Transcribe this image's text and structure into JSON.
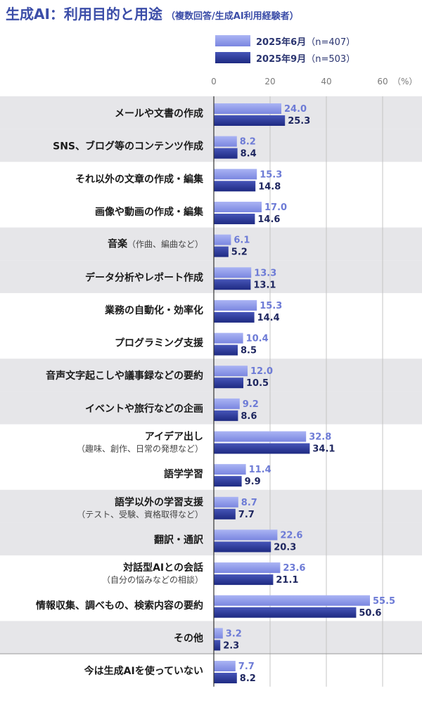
{
  "title": "生成AI：利用目的と用途",
  "subtitle": "（複数回答/生成AI利用経験者）",
  "colors": {
    "jun": "#8f9ae8",
    "sep": "#2c3a9a",
    "title": "#3b4da8",
    "label_jun": "#6d7bd6",
    "label_sep": "#1f2760",
    "band": "#e6e6e9",
    "grid": "#c4c4c4"
  },
  "chart_data": {
    "type": "bar",
    "orientation": "horizontal",
    "unit_label": "（%）",
    "xlim": [
      0,
      60
    ],
    "xticks": [
      0,
      20,
      40,
      60
    ],
    "series": [
      {
        "name": "2025年6月",
        "count": "（n=407）",
        "values": [
          24.0,
          8.2,
          15.3,
          17.0,
          6.1,
          13.3,
          15.3,
          10.4,
          12.0,
          9.2,
          32.8,
          11.4,
          8.7,
          22.6,
          23.6,
          55.5,
          3.2,
          7.7
        ]
      },
      {
        "name": "2025年9月",
        "count": "（n=503）",
        "values": [
          25.3,
          8.4,
          14.8,
          14.6,
          5.2,
          13.1,
          14.4,
          8.5,
          10.5,
          8.6,
          34.1,
          9.9,
          7.7,
          20.3,
          21.1,
          50.6,
          2.3,
          8.2
        ]
      }
    ],
    "categories": [
      {
        "label": "メールや文書の作成"
      },
      {
        "label": "SNS、ブログ等のコンテンツ作成"
      },
      {
        "label": "それ以外の文章の作成・編集"
      },
      {
        "label": "画像や動画の作成・編集"
      },
      {
        "label": "音楽",
        "note": "（作曲、編曲など）"
      },
      {
        "label": "データ分析やレポート作成"
      },
      {
        "label": "業務の自動化・効率化"
      },
      {
        "label": "プログラミング支援"
      },
      {
        "label": "音声文字起こしや議事録などの要約"
      },
      {
        "label": "イベントや旅行などの企画"
      },
      {
        "label": "アイデア出し",
        "note": "（趣味、創作、日常の発想など）"
      },
      {
        "label": "語学学習"
      },
      {
        "label": "語学以外の学習支援",
        "note": "（テスト、受験、資格取得など）"
      },
      {
        "label": "翻訳・通訳"
      },
      {
        "label": "対話型AIとの会話",
        "note": "（自分の悩みなどの相談）"
      },
      {
        "label": "情報収集、調べもの、検索内容の要約"
      },
      {
        "label": "その他"
      },
      {
        "label": "今は生成AIを使っていない"
      }
    ]
  }
}
